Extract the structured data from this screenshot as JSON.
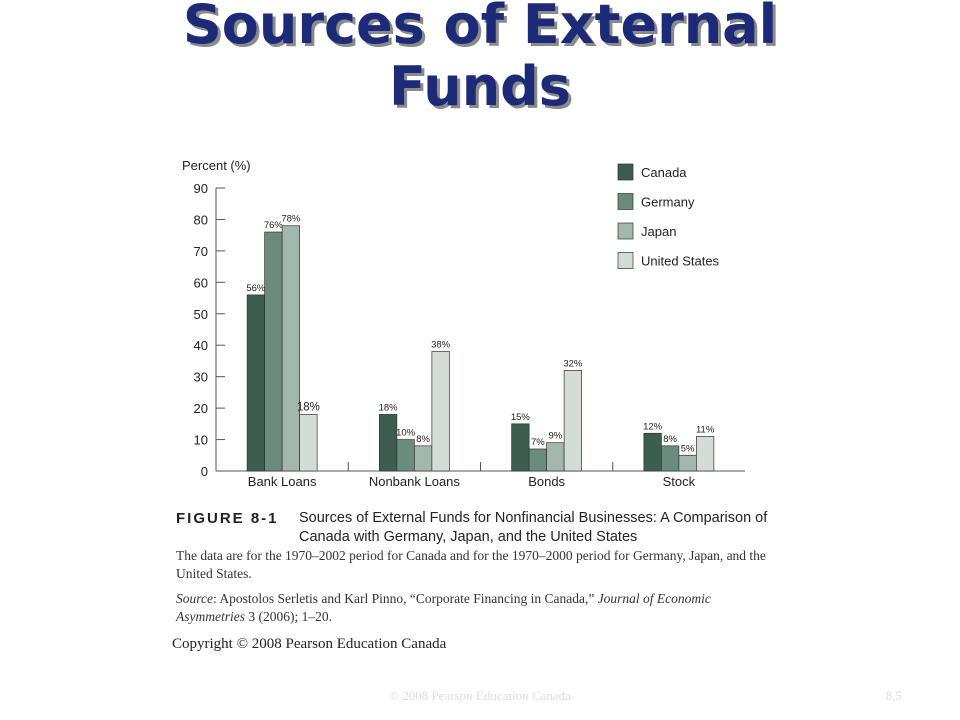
{
  "slide": {
    "title_line1": "Sources of External",
    "title_line2": "Funds"
  },
  "chart_data": {
    "type": "bar",
    "ylabel": "Percent (%)",
    "ylim": [
      0,
      90
    ],
    "yticks": [
      "0",
      "10",
      "20",
      "30",
      "40",
      "50",
      "60",
      "70",
      "80",
      "90"
    ],
    "categories": [
      "Bank Loans",
      "Nonbank Loans",
      "Bonds",
      "Stock"
    ],
    "series": [
      {
        "name": "Canada",
        "values": [
          56,
          18,
          15,
          12
        ],
        "labels": [
          "56%",
          "18%",
          "15%",
          "12%"
        ],
        "color": "#3d5e4f"
      },
      {
        "name": "Germany",
        "values": [
          76,
          10,
          7,
          8
        ],
        "labels": [
          "76%",
          "10%",
          "7%",
          "8%"
        ],
        "color": "#6b8c7d"
      },
      {
        "name": "Japan",
        "values": [
          78,
          8,
          9,
          5
        ],
        "labels": [
          "78%",
          "8%",
          "9%",
          "5%"
        ],
        "color": "#a3b8ac"
      },
      {
        "name": "United States",
        "values": [
          18,
          38,
          32,
          11
        ],
        "labels": [
          "18%",
          "38%",
          "32%",
          "11%"
        ],
        "color": "#d3ddd6"
      }
    ],
    "legend_position": "top-right",
    "grid": false
  },
  "figure": {
    "label": "FIGURE 8-1",
    "title": "Sources of External Funds for Nonfinancial Businesses: A Comparison of Canada with Germany, Japan, and the United States",
    "note": "The data are for the 1970–2002 period for Canada and for the 1970–2000 period for Germany, Japan, and the United States.",
    "source_label": "Source",
    "source_text_1": ": Apostolos Serletis and Karl Pinno, “Corporate Financing in Canada,” ",
    "source_journal": "Journal of Economic Asymmetries",
    "source_text_2": " 3 (2006); 1–20.",
    "copyright": "Copyright © 2008 Pearson Education Canada"
  },
  "footer": {
    "center": "© 2008 Pearson Education Canada",
    "page": "8.5"
  }
}
